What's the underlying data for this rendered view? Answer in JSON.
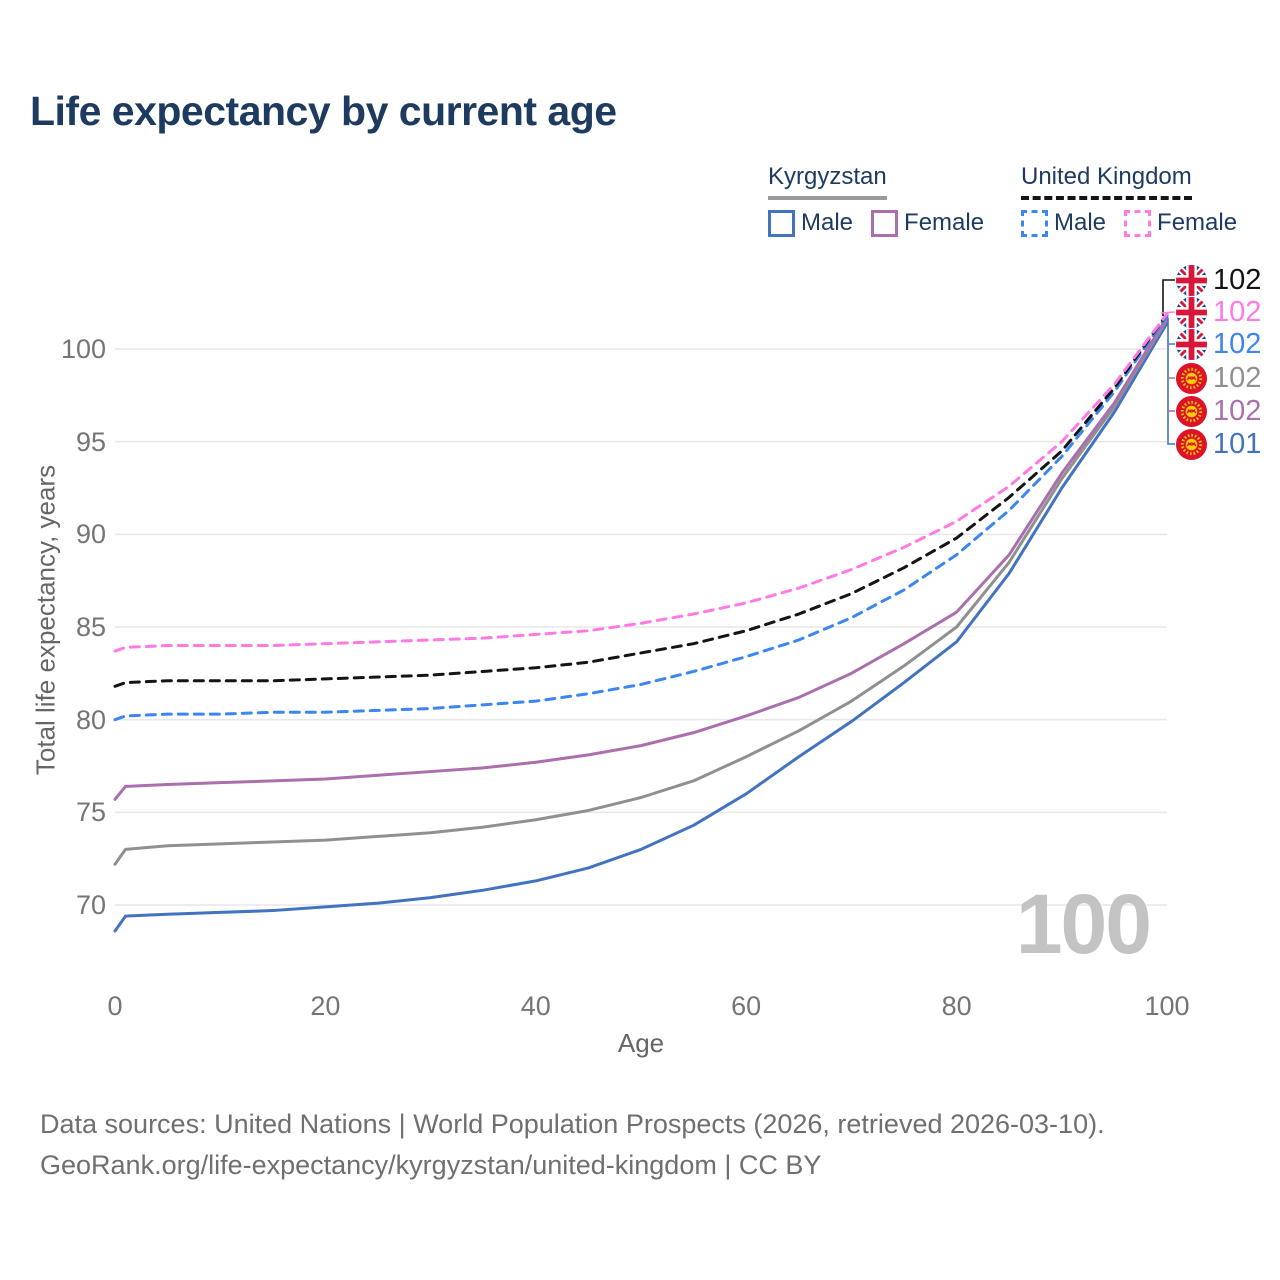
{
  "title": "Life expectancy by current age",
  "legend": {
    "groups": [
      {
        "name": "Kyrgyzstan",
        "line_style": "solid",
        "underline_color": "#9a9a9a",
        "items": [
          {
            "label": "Male",
            "color": "#4273c0"
          },
          {
            "label": "Female",
            "color": "#ab6fad"
          }
        ]
      },
      {
        "name": "United Kingdom",
        "line_style": "dashed",
        "underline_color": "#141414",
        "items": [
          {
            "label": "Male",
            "color": "#3b86f0"
          },
          {
            "label": "Female",
            "color": "#ff7ae5"
          }
        ]
      }
    ]
  },
  "chart_data": {
    "type": "line",
    "title": "Life expectancy by current age",
    "xlabel": "Age",
    "ylabel": "Total life expectancy, years",
    "xticks": [
      0,
      20,
      40,
      60,
      80,
      100
    ],
    "yticks": [
      70,
      75,
      80,
      85,
      90,
      95,
      100
    ],
    "xlim": [
      0,
      100
    ],
    "ylim": [
      67,
      103
    ],
    "grid": "horizontal",
    "x": [
      0,
      1,
      5,
      10,
      15,
      20,
      25,
      30,
      35,
      40,
      45,
      50,
      55,
      60,
      65,
      70,
      75,
      80,
      85,
      90,
      95,
      100
    ],
    "series": [
      {
        "name": "Kyrgyzstan Male",
        "country": "Kyrgyzstan",
        "sex": "male",
        "color": "#4273c0",
        "dash": false,
        "end_label": "101",
        "values": [
          68.6,
          69.4,
          69.5,
          69.6,
          69.7,
          69.9,
          70.1,
          70.4,
          70.8,
          71.3,
          72.0,
          73.0,
          74.3,
          76.0,
          78.0,
          79.9,
          82.0,
          84.2,
          87.9,
          92.5,
          96.6,
          101.4
        ]
      },
      {
        "name": "Kyrgyzstan Both sexes",
        "country": "Kyrgyzstan",
        "sex": "both",
        "color": "#909090",
        "dash": false,
        "end_label": "102",
        "values": [
          72.2,
          73.0,
          73.2,
          73.3,
          73.4,
          73.5,
          73.7,
          73.9,
          74.2,
          74.6,
          75.1,
          75.8,
          76.7,
          78.0,
          79.4,
          81.0,
          82.9,
          85.0,
          88.5,
          93.0,
          96.9,
          101.6
        ]
      },
      {
        "name": "Kyrgyzstan Female",
        "country": "Kyrgyzstan",
        "sex": "female",
        "color": "#ab6fad",
        "dash": false,
        "end_label": "102",
        "values": [
          75.7,
          76.4,
          76.5,
          76.6,
          76.7,
          76.8,
          77.0,
          77.2,
          77.4,
          77.7,
          78.1,
          78.6,
          79.3,
          80.2,
          81.2,
          82.5,
          84.1,
          85.8,
          88.9,
          93.3,
          97.1,
          101.7
        ]
      },
      {
        "name": "United Kingdom Male",
        "country": "United Kingdom",
        "sex": "male",
        "color": "#3b86f0",
        "dash": true,
        "end_label": "102",
        "values": [
          80.0,
          80.2,
          80.3,
          80.3,
          80.4,
          80.4,
          80.5,
          80.6,
          80.8,
          81.0,
          81.4,
          81.9,
          82.6,
          83.4,
          84.3,
          85.5,
          87.0,
          88.9,
          91.3,
          94.2,
          97.7,
          101.8
        ]
      },
      {
        "name": "United Kingdom Both sexes",
        "country": "United Kingdom",
        "sex": "both",
        "color": "#141414",
        "dash": true,
        "end_label": "102",
        "values": [
          81.8,
          82.0,
          82.1,
          82.1,
          82.1,
          82.2,
          82.3,
          82.4,
          82.6,
          82.8,
          83.1,
          83.6,
          84.1,
          84.8,
          85.7,
          86.8,
          88.2,
          89.8,
          92.0,
          94.5,
          97.9,
          101.9
        ]
      },
      {
        "name": "United Kingdom Female",
        "country": "United Kingdom",
        "sex": "female",
        "color": "#ff7ae5",
        "dash": true,
        "end_label": "102",
        "values": [
          83.7,
          83.9,
          84.0,
          84.0,
          84.0,
          84.1,
          84.2,
          84.3,
          84.4,
          84.6,
          84.8,
          85.2,
          85.7,
          86.3,
          87.1,
          88.1,
          89.3,
          90.7,
          92.6,
          95.0,
          98.1,
          101.9
        ]
      }
    ]
  },
  "end_labels": [
    {
      "value": "102",
      "flag": "united-kingdom",
      "color": "#141414"
    },
    {
      "value": "102",
      "flag": "united-kingdom",
      "color": "#ff7ae5"
    },
    {
      "value": "102",
      "flag": "united-kingdom",
      "color": "#3b86f0"
    },
    {
      "value": "102",
      "flag": "kyrgyzstan",
      "color": "#909090"
    },
    {
      "value": "102",
      "flag": "kyrgyzstan",
      "color": "#ab6fad"
    },
    {
      "value": "101",
      "flag": "kyrgyzstan",
      "color": "#4273c0"
    }
  ],
  "watermark": "100",
  "footer": {
    "line1": "Data sources: United Nations | World Population Prospects (2026, retrieved 2026-03-10).",
    "line2": "GeoRank.org/life-expectancy/kyrgyzstan/united-kingdom | CC BY"
  }
}
